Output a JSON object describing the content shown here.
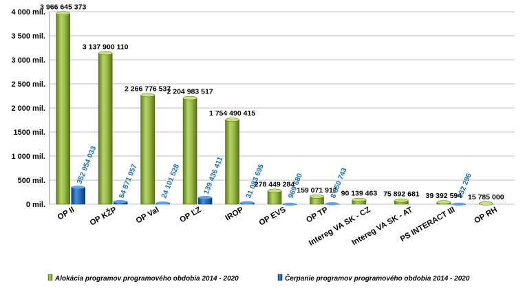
{
  "chart_data": {
    "type": "bar",
    "title": "",
    "xlabel": "",
    "ylabel": "",
    "ylim": [
      0,
      4000000000
    ],
    "grid": true,
    "legend_position": "bottom",
    "yticks": [
      {
        "value": 0,
        "label": "0 mil."
      },
      {
        "value": 500000000,
        "label": "500 mil."
      },
      {
        "value": 1000000000,
        "label": "1 000 mil."
      },
      {
        "value": 1500000000,
        "label": "1500 mil."
      },
      {
        "value": 2000000000,
        "label": "2 000 mil."
      },
      {
        "value": 2500000000,
        "label": "2 500 mil."
      },
      {
        "value": 3000000000,
        "label": "3 000 mil."
      },
      {
        "value": 3500000000,
        "label": "3 500 mil."
      },
      {
        "value": 4000000000,
        "label": "4 000 mil."
      }
    ],
    "categories": [
      "OP II",
      "OP KŽP",
      "OP Val",
      "OP ĽZ",
      "IROP",
      "OP EVS",
      "OP TP",
      "Intereg VA SK - CZ",
      "Intereg VA SK - AT",
      "PS INTERACT III",
      "OP RH"
    ],
    "series": [
      {
        "name": "Alokácia programov programového obdobia 2014 - 2020",
        "color": "#7a9a2a",
        "values": [
          3966645373,
          3137900110,
          2266776537,
          2204983517,
          1754490415,
          278449284,
          159071912,
          90139463,
          75892681,
          39392594,
          15785000
        ],
        "labels": [
          "3 966 645 373",
          "3 137 900 110",
          "2 266 776 537",
          "2 204 983 517",
          "1 754 490 415",
          "278 449 284",
          "159 071 912",
          "90 139 463",
          "75 892 681",
          "39 392 594",
          "15 785 000"
        ]
      },
      {
        "name": "Čerpanie programov programového obdobia 2014 - 2020",
        "color": "#1f5fa8",
        "label_color": "#1f6fc0",
        "values": [
          352954033,
          54871957,
          24101528,
          139436411,
          31083695,
          969680,
          8850743,
          0,
          0,
          332296,
          0
        ],
        "labels": [
          "352 954 033",
          "54 871 957",
          "24 101 528",
          "139 436 411",
          "31 083 695",
          "969 680",
          "8 850 743",
          "",
          "",
          "332 296",
          ""
        ]
      }
    ]
  }
}
